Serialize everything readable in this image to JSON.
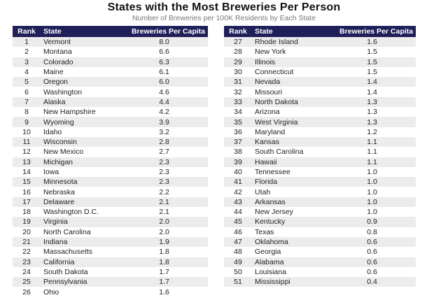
{
  "chart_data": {
    "type": "table",
    "title": "States with the Most Breweries Per Person",
    "subtitle": "Number of Breweries per 100K Residents by Each State",
    "columns": [
      "Rank",
      "State",
      "Breweries Per Capita"
    ],
    "rows": [
      [
        1,
        "Vermont",
        "8.0"
      ],
      [
        2,
        "Montana",
        "6.6"
      ],
      [
        3,
        "Colorado",
        "6.3"
      ],
      [
        4,
        "Maine",
        "6.1"
      ],
      [
        5,
        "Oregon",
        "6.0"
      ],
      [
        6,
        "Washington",
        "4.6"
      ],
      [
        7,
        "Alaska",
        "4.4"
      ],
      [
        8,
        "New Hampshire",
        "4.2"
      ],
      [
        9,
        "Wyoming",
        "3.9"
      ],
      [
        10,
        "Idaho",
        "3.2"
      ],
      [
        11,
        "Wisconsin",
        "2.8"
      ],
      [
        12,
        "New Mexico",
        "2.7"
      ],
      [
        13,
        "Michigan",
        "2.3"
      ],
      [
        14,
        "Iowa",
        "2.3"
      ],
      [
        15,
        "Minnesota",
        "2.3"
      ],
      [
        16,
        "Nebraska",
        "2.2"
      ],
      [
        17,
        "Delaware",
        "2.1"
      ],
      [
        18,
        "Washington D.C.",
        "2.1"
      ],
      [
        19,
        "Virginia",
        "2.0"
      ],
      [
        20,
        "North Carolina",
        "2.0"
      ],
      [
        21,
        "Indiana",
        "1.9"
      ],
      [
        22,
        "Massachusetts",
        "1.8"
      ],
      [
        23,
        "California",
        "1.8"
      ],
      [
        24,
        "South Dakota",
        "1.7"
      ],
      [
        25,
        "Pennsylvania",
        "1.7"
      ],
      [
        26,
        "Ohio",
        "1.6"
      ],
      [
        27,
        "Rhode Island",
        "1.6"
      ],
      [
        28,
        "New York",
        "1.5"
      ],
      [
        29,
        "Illinois",
        "1.5"
      ],
      [
        30,
        "Connecticut",
        "1.5"
      ],
      [
        31,
        "Nevada",
        "1.4"
      ],
      [
        32,
        "Missouri",
        "1.4"
      ],
      [
        33,
        "North Dakota",
        "1.3"
      ],
      [
        34,
        "Arizona",
        "1.3"
      ],
      [
        35,
        "West Virginia",
        "1.3"
      ],
      [
        36,
        "Maryland",
        "1.2"
      ],
      [
        37,
        "Kansas",
        "1.1"
      ],
      [
        38,
        "South Carolina",
        "1.1"
      ],
      [
        39,
        "Hawaii",
        "1.1"
      ],
      [
        40,
        "Tennessee",
        "1.0"
      ],
      [
        41,
        "Florida",
        "1.0"
      ],
      [
        42,
        "Utah",
        "1.0"
      ],
      [
        43,
        "Arkansas",
        "1.0"
      ],
      [
        44,
        "New Jersey",
        "1.0"
      ],
      [
        45,
        "Kentucky",
        "0.9"
      ],
      [
        46,
        "Texas",
        "0.8"
      ],
      [
        47,
        "Oklahoma",
        "0.6"
      ],
      [
        48,
        "Georgia",
        "0.6"
      ],
      [
        49,
        "Alabama",
        "0.6"
      ],
      [
        50,
        "Louisiana",
        "0.6"
      ],
      [
        51,
        "Mississippi",
        "0.4"
      ]
    ]
  },
  "colors": {
    "header_bg": "#1f1f5a",
    "stripe": "#ececec"
  }
}
